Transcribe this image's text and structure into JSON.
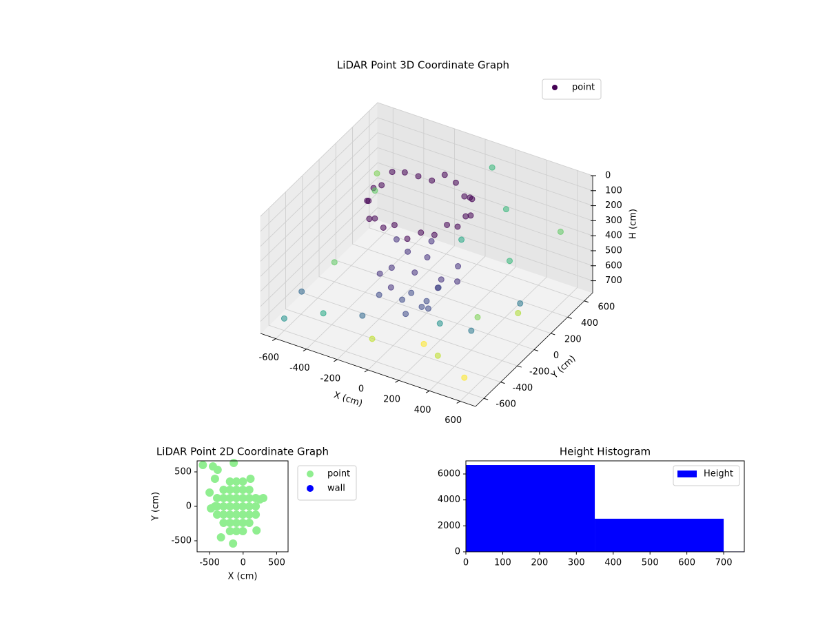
{
  "chart_data": [
    {
      "type": "scatter3d",
      "title": "LiDAR Point 3D Coordinate Graph",
      "xlabel": "X (cm)",
      "ylabel": "Y (cm)",
      "zlabel": "H (cm)",
      "xlim": [
        -700,
        700
      ],
      "ylim": [
        -700,
        700
      ],
      "zlim": [
        0,
        780
      ],
      "z_inverted": true,
      "xticks": [
        -600,
        -400,
        -200,
        0,
        200,
        400,
        600
      ],
      "yticks": [
        -600,
        -400,
        -200,
        0,
        200,
        400,
        600
      ],
      "zticks": [
        0,
        100,
        200,
        300,
        400,
        500,
        600,
        700
      ],
      "grid": true,
      "legend": "upper right",
      "series": [
        {
          "name": "point",
          "color": "#440154",
          "x": [
            200,
            190,
            160,
            112,
            50,
            -22,
            -100,
            -178,
            -250,
            -312,
            -360,
            -390,
            -400,
            -390,
            -360,
            -312,
            -250,
            -178,
            -100,
            -22,
            50,
            112,
            160,
            190,
            -50,
            100,
            -200,
            -50,
            -50,
            50,
            -150,
            50,
            -150,
            150,
            -250,
            0,
            120,
            -200,
            200,
            -100,
            0,
            -50,
            150,
            -250,
            600,
            -650,
            400,
            -600,
            500,
            -400,
            200,
            650,
            -600,
            300,
            100,
            0,
            -500,
            550,
            350,
            -200,
            400,
            250,
            -650,
            600,
            -100
          ],
          "y": [
            100,
            178,
            250,
            312,
            360,
            390,
            400,
            390,
            360,
            312,
            250,
            178,
            100,
            22,
            -50,
            -112,
            -160,
            -190,
            -200,
            -190,
            -160,
            -112,
            -50,
            22,
            -50,
            -50,
            -50,
            100,
            -200,
            50,
            50,
            -150,
            -150,
            100,
            100,
            -250,
            -200,
            -200,
            0,
            0,
            0,
            150,
            -100,
            -100,
            500,
            600,
            -600,
            -600,
            200,
            -500,
            -400,
            -100,
            0,
            400,
            600,
            -650,
            300,
            -400,
            350,
            -400,
            -200,
            -300,
            -300,
            -650,
            600
          ],
          "z": [
            120,
            160,
            100,
            140,
            180,
            130,
            110,
            170,
            150,
            120,
            100,
            160,
            140,
            180,
            130,
            200,
            150,
            170,
            120,
            190,
            140,
            160,
            110,
            150,
            500,
            550,
            520,
            480,
            600,
            620,
            450,
            640,
            580,
            470,
            430,
            650,
            600,
            620,
            500,
            680,
            700,
            400,
            450,
            550,
            300,
            400,
            600,
            700,
            650,
            650,
            700,
            500,
            650,
            200,
            100,
            600,
            300,
            400,
            500,
            650,
            650,
            600,
            700,
            650,
            650
          ],
          "colors": [
            "#440154",
            "#440154",
            "#440154",
            "#440154",
            "#440154",
            "#440154",
            "#440154",
            "#440154",
            "#440154",
            "#440154",
            "#440154",
            "#440154",
            "#440154",
            "#440154",
            "#440154",
            "#440154",
            "#440154",
            "#440154",
            "#440154",
            "#440154",
            "#440154",
            "#440154",
            "#440154",
            "#440154",
            "#46327e",
            "#46327e",
            "#46327e",
            "#46327e",
            "#3e4a89",
            "#3e4a89",
            "#46327e",
            "#3e4a89",
            "#46327e",
            "#46327e",
            "#46327e",
            "#3e4a89",
            "#3e4a89",
            "#3e4a89",
            "#46327e",
            "#3e4a89",
            "#3e4a89",
            "#46327e",
            "#46327e",
            "#46327e",
            "#5ec962",
            "#7ad151",
            "#bddf26",
            "#21918c",
            "#2a788e",
            "#22a884",
            "#fde725",
            "#addc30",
            "#5ec962",
            "#35b779",
            "#35b779",
            "#bddf26",
            "#5ec962",
            "#7ad151",
            "#35b779",
            "#31688e",
            "#2a788e",
            "#21918c",
            "#31688e",
            "#fde725",
            "#22a884"
          ]
        }
      ]
    },
    {
      "type": "scatter",
      "title": "LiDAR Point 2D Coordinate Graph",
      "xlabel": "X (cm)",
      "ylabel": "Y (cm)",
      "xlim": [
        -686,
        670
      ],
      "ylim": [
        -660,
        660
      ],
      "xticks": [
        -500,
        0,
        500
      ],
      "yticks": [
        -500,
        0,
        500
      ],
      "legend": "outside upper right",
      "series": [
        {
          "name": "point",
          "color": "#90ee90",
          "x": [
            -388,
            -388,
            -388,
            188,
            188,
            188,
            -292,
            -292,
            -292,
            -292,
            -292,
            92,
            92,
            92,
            92,
            92,
            -196,
            -196,
            -196,
            -196,
            -196,
            -196,
            -196,
            -4,
            -4,
            -4,
            -4,
            -4,
            -4,
            -4,
            -100,
            -100,
            -100,
            -100,
            -100,
            -100,
            -100,
            -600,
            -450,
            -380,
            -140,
            -420,
            -500,
            -420,
            -330,
            -150,
            110,
            250,
            200,
            300,
            -480
          ],
          "y": [
            -120,
            0,
            120,
            -120,
            0,
            120,
            -240,
            -120,
            0,
            120,
            240,
            -240,
            -120,
            0,
            120,
            240,
            -360,
            -240,
            -120,
            0,
            120,
            240,
            360,
            -360,
            -240,
            -120,
            0,
            120,
            240,
            360,
            -360,
            -240,
            -120,
            0,
            120,
            240,
            360,
            600,
            580,
            530,
            630,
            400,
            200,
            0,
            -450,
            -540,
            400,
            100,
            -350,
            120,
            -30
          ]
        },
        {
          "name": "wall",
          "color": "#0000ff",
          "x": [],
          "y": []
        }
      ]
    },
    {
      "type": "histogram",
      "title": "Height Histogram",
      "bins": [
        0,
        350,
        700,
        1050
      ],
      "xlim": [
        0,
        756
      ],
      "ylim": [
        0,
        7010
      ],
      "xticks": [
        0,
        100,
        200,
        300,
        400,
        500,
        600,
        700
      ],
      "yticks": [
        0,
        2000,
        4000,
        6000
      ],
      "legend": "upper right",
      "series": [
        {
          "name": "Height",
          "color": "#0000ff",
          "values": [
            6690,
            2550,
            30
          ]
        }
      ]
    }
  ]
}
